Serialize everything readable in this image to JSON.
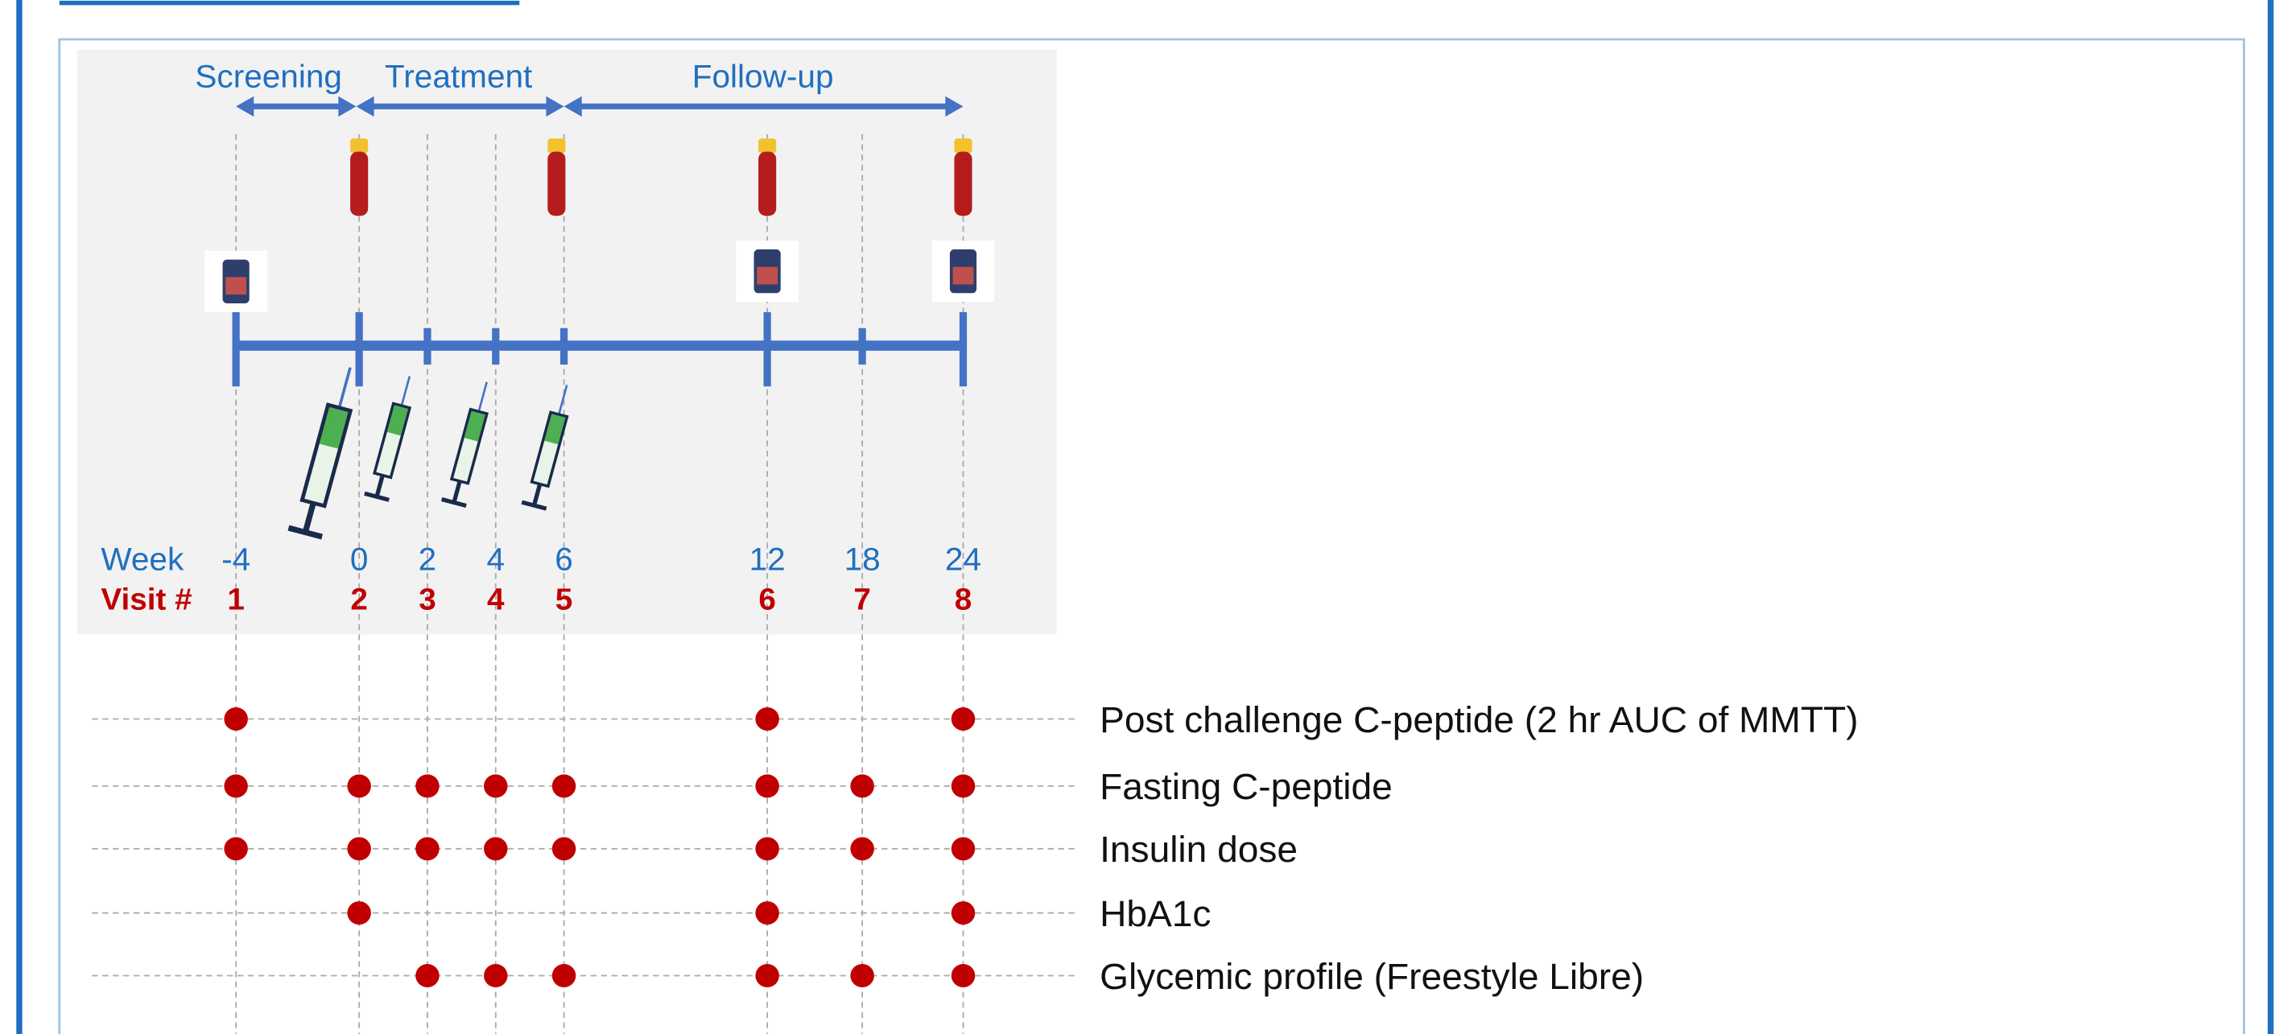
{
  "phases": [
    {
      "label": "Screening"
    },
    {
      "label": "Treatment"
    },
    {
      "label": "Follow-up"
    }
  ],
  "timeline": {
    "week_label": "Week",
    "visit_label": "Visit #",
    "weeks": [
      -4,
      0,
      2,
      4,
      6,
      12,
      18,
      24
    ],
    "visits": [
      1,
      2,
      3,
      4,
      5,
      6,
      7,
      8
    ]
  },
  "assessments": [
    {
      "label": "Post challenge C-peptide (2 hr AUC of MMTT)",
      "schedule": [
        true,
        false,
        false,
        false,
        false,
        true,
        false,
        true
      ]
    },
    {
      "label": "Fasting C-peptide",
      "schedule": [
        true,
        true,
        true,
        true,
        true,
        true,
        true,
        true
      ]
    },
    {
      "label": "Insulin dose",
      "schedule": [
        true,
        true,
        true,
        true,
        true,
        true,
        true,
        true
      ]
    },
    {
      "label": "HbA1c",
      "schedule": [
        false,
        true,
        false,
        false,
        false,
        true,
        false,
        true
      ]
    },
    {
      "label": "Glycemic profile (Freestyle Libre)",
      "schedule": [
        false,
        false,
        true,
        true,
        true,
        true,
        true,
        true
      ]
    }
  ]
}
